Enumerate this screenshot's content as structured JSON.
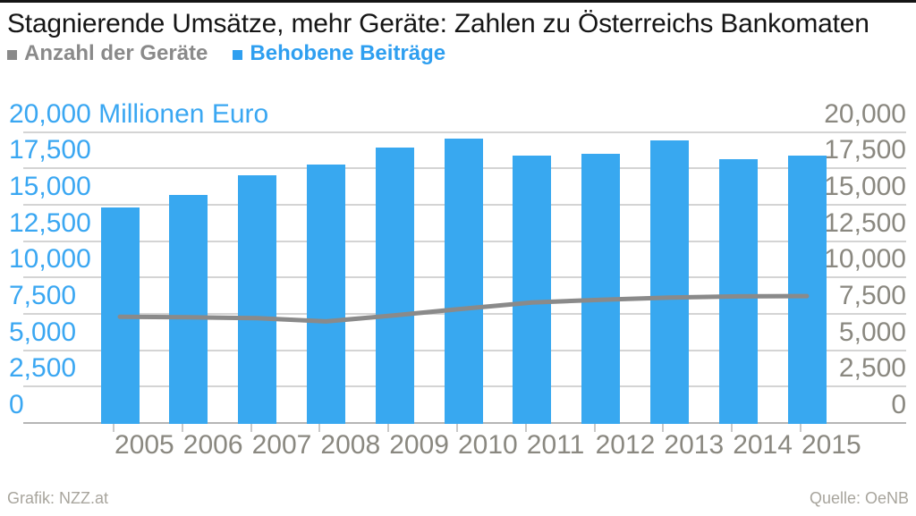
{
  "header": {
    "title": "Stagnierende Umsätze, mehr Geräte: Zahlen zu Österreichs Bankomaten",
    "legend": [
      {
        "label": "Anzahl der Geräte",
        "color": "#8a8a8a"
      },
      {
        "label": "Behobene Beiträge",
        "color": "#2f9ff0"
      }
    ]
  },
  "chart_data": {
    "type": "bar+line",
    "title": "Stagnierende Umsätze, mehr Geräte: Zahlen zu Österreichs Bankomaten",
    "categories": [
      "2005",
      "2006",
      "2007",
      "2008",
      "2009",
      "2010",
      "2011",
      "2012",
      "2013",
      "2014",
      "2015"
    ],
    "series": [
      {
        "name": "Behobene Beiträge",
        "type": "bar",
        "color": "#38a8f0",
        "values": [
          14800,
          15700,
          17000,
          17750,
          18950,
          19550,
          18350,
          18500,
          19450,
          18100,
          18400
        ]
      },
      {
        "name": "Anzahl der Geräte",
        "type": "line",
        "color": "#8a8a8a",
        "values": [
          7300,
          7270,
          7200,
          6980,
          7400,
          7850,
          8280,
          8470,
          8620,
          8700,
          8720
        ]
      }
    ],
    "y_axis": {
      "min": 0,
      "max": 20000,
      "step": 2500,
      "tick_labels": [
        "0",
        "2,500",
        "5,000",
        "7,500",
        "10,000",
        "12,500",
        "15,000",
        "17,500",
        "20,000"
      ],
      "unit_suffix": "Millionen Euro",
      "left_label_color": "#3aa7f2",
      "right_label_color": "#8a8880",
      "gridline_color": "#d4d4d4",
      "baseline_color": "#b5b5b5"
    },
    "xlabel": "",
    "ylabel": "Millionen Euro",
    "ylim": [
      0,
      20000
    ],
    "grid": true,
    "legend_position": "top"
  },
  "footer": {
    "credit": "Grafik: NZZ.at",
    "source": "Quelle: OeNB"
  }
}
